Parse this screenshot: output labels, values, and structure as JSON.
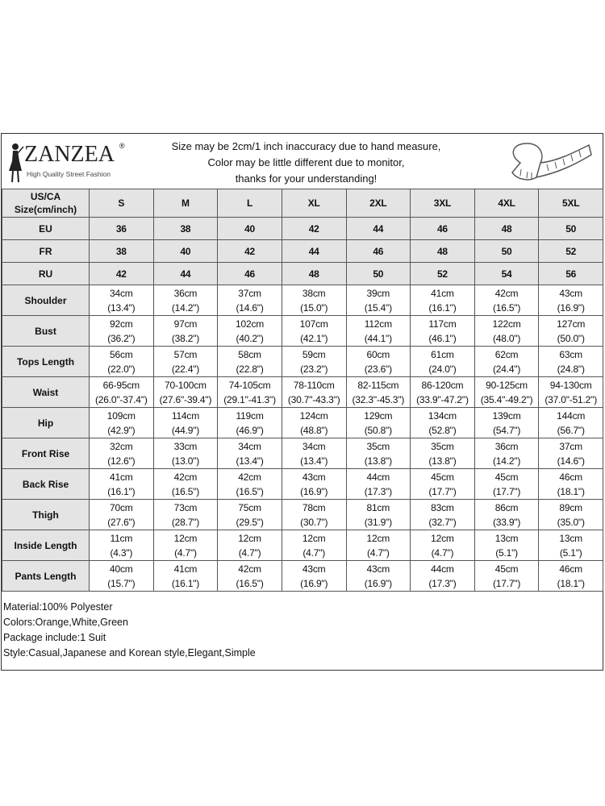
{
  "brand": {
    "name": "ZANZEA",
    "registered": "®",
    "tagline": "High Quality Street Fashion"
  },
  "notice": [
    "Size may be 2cm/1 inch inaccuracy due to hand measure,",
    "Color may be little different due to monitor,",
    "thanks for your understanding!"
  ],
  "size_rows": [
    {
      "label": "US/CA Size(cm/inch)",
      "values": [
        "S",
        "M",
        "L",
        "XL",
        "2XL",
        "3XL",
        "4XL",
        "5XL"
      ]
    },
    {
      "label": "EU",
      "values": [
        "36",
        "38",
        "40",
        "42",
        "44",
        "46",
        "48",
        "50"
      ]
    },
    {
      "label": "FR",
      "values": [
        "38",
        "40",
        "42",
        "44",
        "46",
        "48",
        "50",
        "52"
      ]
    },
    {
      "label": "RU",
      "values": [
        "42",
        "44",
        "46",
        "48",
        "50",
        "52",
        "54",
        "56"
      ]
    }
  ],
  "measure_rows": [
    {
      "label": "Shoulder",
      "values": [
        [
          "34cm",
          "(13.4\")"
        ],
        [
          "36cm",
          "(14.2\")"
        ],
        [
          "37cm",
          "(14.6\")"
        ],
        [
          "38cm",
          "(15.0\")"
        ],
        [
          "39cm",
          "(15.4\")"
        ],
        [
          "41cm",
          "(16.1\")"
        ],
        [
          "42cm",
          "(16.5\")"
        ],
        [
          "43cm",
          "(16.9\")"
        ]
      ]
    },
    {
      "label": "Bust",
      "values": [
        [
          "92cm",
          "(36.2\")"
        ],
        [
          "97cm",
          "(38.2\")"
        ],
        [
          "102cm",
          "(40.2\")"
        ],
        [
          "107cm",
          "(42.1\")"
        ],
        [
          "112cm",
          "(44.1\")"
        ],
        [
          "117cm",
          "(46.1\")"
        ],
        [
          "122cm",
          "(48.0\")"
        ],
        [
          "127cm",
          "(50.0\")"
        ]
      ]
    },
    {
      "label": "Tops Length",
      "values": [
        [
          "56cm",
          "(22.0\")"
        ],
        [
          "57cm",
          "(22.4\")"
        ],
        [
          "58cm",
          "(22.8\")"
        ],
        [
          "59cm",
          "(23.2\")"
        ],
        [
          "60cm",
          "(23.6\")"
        ],
        [
          "61cm",
          "(24.0\")"
        ],
        [
          "62cm",
          "(24.4\")"
        ],
        [
          "63cm",
          "(24.8\")"
        ]
      ]
    },
    {
      "label": "Waist",
      "values": [
        [
          "66-95cm",
          "(26.0\"-37.4\")"
        ],
        [
          "70-100cm",
          "(27.6\"-39.4\")"
        ],
        [
          "74-105cm",
          "(29.1\"-41.3\")"
        ],
        [
          "78-110cm",
          "(30.7\"-43.3\")"
        ],
        [
          "82-115cm",
          "(32.3\"-45.3\")"
        ],
        [
          "86-120cm",
          "(33.9\"-47.2\")"
        ],
        [
          "90-125cm",
          "(35.4\"-49.2\")"
        ],
        [
          "94-130cm",
          "(37.0\"-51.2\")"
        ]
      ]
    },
    {
      "label": "Hip",
      "values": [
        [
          "109cm",
          "(42.9\")"
        ],
        [
          "114cm",
          "(44.9\")"
        ],
        [
          "119cm",
          "(46.9\")"
        ],
        [
          "124cm",
          "(48.8\")"
        ],
        [
          "129cm",
          "(50.8\")"
        ],
        [
          "134cm",
          "(52.8\")"
        ],
        [
          "139cm",
          "(54.7\")"
        ],
        [
          "144cm",
          "(56.7\")"
        ]
      ]
    },
    {
      "label": "Front Rise",
      "values": [
        [
          "32cm",
          "(12.6\")"
        ],
        [
          "33cm",
          "(13.0\")"
        ],
        [
          "34cm",
          "(13.4\")"
        ],
        [
          "34cm",
          "(13.4\")"
        ],
        [
          "35cm",
          "(13.8\")"
        ],
        [
          "35cm",
          "(13.8\")"
        ],
        [
          "36cm",
          "(14.2\")"
        ],
        [
          "37cm",
          "(14.6\")"
        ]
      ]
    },
    {
      "label": "Back Rise",
      "values": [
        [
          "41cm",
          "(16.1\")"
        ],
        [
          "42cm",
          "(16.5\")"
        ],
        [
          "42cm",
          "(16.5\")"
        ],
        [
          "43cm",
          "(16.9\")"
        ],
        [
          "44cm",
          "(17.3\")"
        ],
        [
          "45cm",
          "(17.7\")"
        ],
        [
          "45cm",
          "(17.7\")"
        ],
        [
          "46cm",
          "(18.1\")"
        ]
      ]
    },
    {
      "label": "Thigh",
      "values": [
        [
          "70cm",
          "(27.6\")"
        ],
        [
          "73cm",
          "(28.7\")"
        ],
        [
          "75cm",
          "(29.5\")"
        ],
        [
          "78cm",
          "(30.7\")"
        ],
        [
          "81cm",
          "(31.9\")"
        ],
        [
          "83cm",
          "(32.7\")"
        ],
        [
          "86cm",
          "(33.9\")"
        ],
        [
          "89cm",
          "(35.0\")"
        ]
      ]
    },
    {
      "label": "Inside Length",
      "values": [
        [
          "11cm",
          "(4.3\")"
        ],
        [
          "12cm",
          "(4.7\")"
        ],
        [
          "12cm",
          "(4.7\")"
        ],
        [
          "12cm",
          "(4.7\")"
        ],
        [
          "12cm",
          "(4.7\")"
        ],
        [
          "12cm",
          "(4.7\")"
        ],
        [
          "13cm",
          "(5.1\")"
        ],
        [
          "13cm",
          "(5.1\")"
        ]
      ]
    },
    {
      "label": "Pants Length",
      "values": [
        [
          "40cm",
          "(15.7\")"
        ],
        [
          "41cm",
          "(16.1\")"
        ],
        [
          "42cm",
          "(16.5\")"
        ],
        [
          "43cm",
          "(16.9\")"
        ],
        [
          "43cm",
          "(16.9\")"
        ],
        [
          "44cm",
          "(17.3\")"
        ],
        [
          "45cm",
          "(17.7\")"
        ],
        [
          "46cm",
          "(18.1\")"
        ]
      ]
    }
  ],
  "notes": [
    "Material:100% Polyester",
    "Colors:Orange,White,Green",
    "Package include:1 Suit",
    "Style:Casual,Japanese and Korean style,Elegant,Simple"
  ],
  "colors": {
    "header_bg": "#e4e4e4",
    "border": "#555555"
  }
}
